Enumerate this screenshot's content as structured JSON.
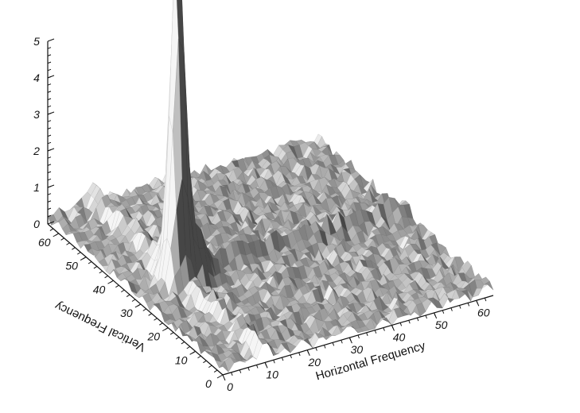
{
  "chart_data": {
    "type": "surface",
    "title": "",
    "xlabel": "Horizontal Frequency",
    "ylabel": "Vertical Frequency",
    "zlabel": "",
    "xlim": [
      0,
      64
    ],
    "ylim": [
      0,
      64
    ],
    "zlim": [
      0,
      5
    ],
    "x_ticks": [
      "0",
      "10",
      "20",
      "30",
      "40",
      "50",
      "60"
    ],
    "y_ticks": [
      "0",
      "10",
      "20",
      "30",
      "40",
      "50",
      "60"
    ],
    "z_ticks": [
      "0",
      "1",
      "2",
      "3",
      "4",
      "5"
    ],
    "peaks": [
      {
        "x": 10,
        "y": 32,
        "z": 9.0
      },
      {
        "x": 12,
        "y": 36,
        "z": 2.6
      },
      {
        "x": 8,
        "y": 30,
        "z": 1.6
      },
      {
        "x": 14,
        "y": 30,
        "z": 1.1
      }
    ],
    "ridges": [
      {
        "axis": "x",
        "at_y": 32,
        "from": 14,
        "to": 64,
        "z": 0.45
      },
      {
        "axis": "y",
        "at_x": 10,
        "from": 0,
        "to": 64,
        "z": 0.45
      }
    ],
    "noise_level": 0.35,
    "grid": false,
    "colors": {
      "surface": "#a0a0a0",
      "axis": "#111111",
      "background": "#ffffff"
    }
  }
}
